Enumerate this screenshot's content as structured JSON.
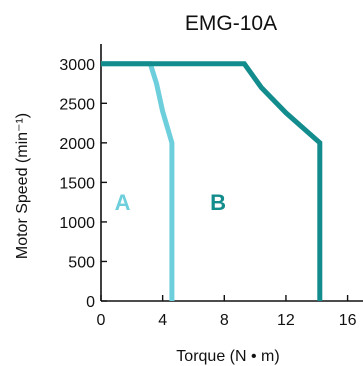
{
  "chart_data": {
    "type": "line",
    "title": "EMG-10A",
    "xlabel": "Torque (N • m)",
    "ylabel": "Motor Speed (min⁻¹)",
    "xlim": [
      0,
      17
    ],
    "ylim": [
      0,
      3250
    ],
    "xticks": [
      "0",
      "4",
      "8",
      "12",
      "16"
    ],
    "yticks": [
      "0",
      "500",
      "1000",
      "1500",
      "2000",
      "2500",
      "3000"
    ],
    "grid": false,
    "series": [
      {
        "name": "A",
        "color": "#6ecfdc",
        "points": [
          [
            0,
            3000
          ],
          [
            3.2,
            3000
          ],
          [
            3.6,
            2750
          ],
          [
            4.0,
            2400
          ],
          [
            4.6,
            2000
          ],
          [
            4.6,
            0
          ]
        ]
      },
      {
        "name": "B",
        "color": "#128c8c",
        "points": [
          [
            0,
            3000
          ],
          [
            9.3,
            3000
          ],
          [
            10.4,
            2700
          ],
          [
            12.0,
            2380
          ],
          [
            14.2,
            2000
          ],
          [
            14.2,
            0
          ]
        ]
      }
    ],
    "annotations": [
      {
        "text": "A",
        "x": 1.4,
        "y": 1250,
        "color": "#6ecfdc"
      },
      {
        "text": "B",
        "x": 7.6,
        "y": 1250,
        "color": "#128c8c"
      }
    ]
  }
}
